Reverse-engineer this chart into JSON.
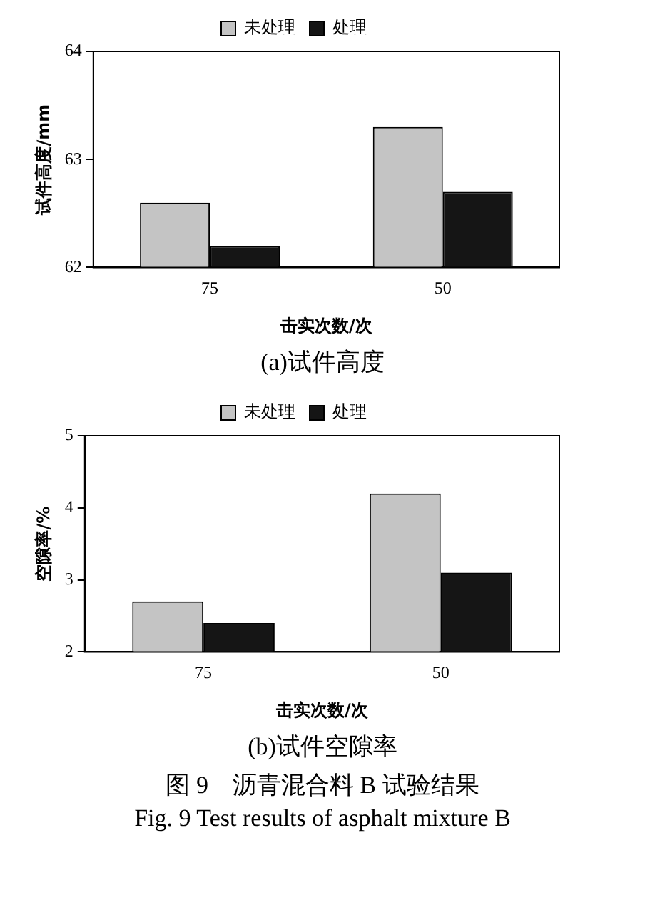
{
  "chart_data": [
    {
      "type": "bar",
      "title": "(a)试件高度",
      "xlabel": "击实次数/次",
      "ylabel": "试件高度/mm",
      "categories": [
        "75",
        "50"
      ],
      "series": [
        {
          "name": "未处理",
          "color": "#c4c4c4",
          "values": [
            62.6,
            63.3
          ]
        },
        {
          "name": "处理",
          "color": "#151515",
          "values": [
            62.2,
            62.7
          ]
        }
      ],
      "ylim": [
        62,
        64
      ],
      "yticks": [
        62,
        63,
        64
      ],
      "grid": false,
      "legend": "top"
    },
    {
      "type": "bar",
      "title": "(b)试件空隙率",
      "xlabel": "击实次数/次",
      "ylabel": "空隙率/%",
      "categories": [
        "75",
        "50"
      ],
      "series": [
        {
          "name": "未处理",
          "color": "#c4c4c4",
          "values": [
            2.7,
            4.2
          ]
        },
        {
          "name": "处理",
          "color": "#151515",
          "values": [
            2.4,
            3.1
          ]
        }
      ],
      "ylim": [
        2,
        5
      ],
      "yticks": [
        2,
        3,
        4,
        5
      ],
      "grid": false,
      "legend": "top",
      "annotations": [
        "图 9　沥青混合料 B 试验结果",
        "Fig. 9 Test results of asphalt mixture B"
      ]
    }
  ]
}
